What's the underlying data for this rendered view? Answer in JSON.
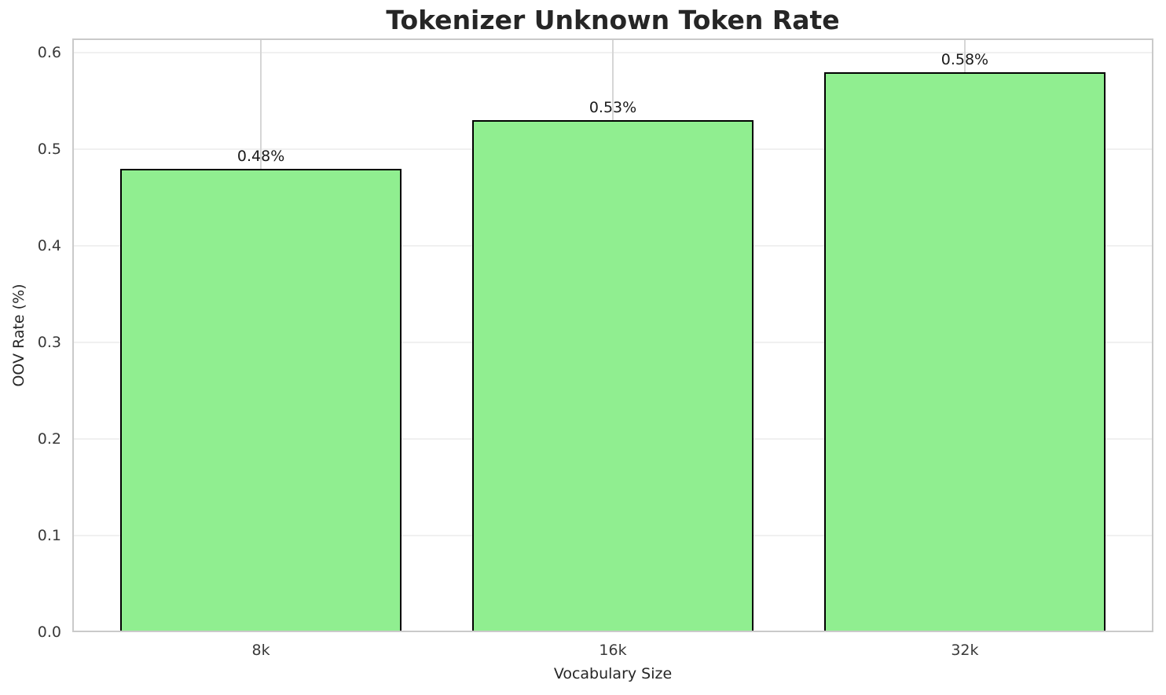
{
  "chart_data": {
    "type": "bar",
    "title": "Tokenizer Unknown Token Rate",
    "xlabel": "Vocabulary Size",
    "ylabel": "OOV Rate (%)",
    "categories": [
      "8k",
      "16k",
      "32k"
    ],
    "values": [
      0.48,
      0.53,
      0.58
    ],
    "bar_labels": [
      "0.48%",
      "0.53%",
      "0.58%"
    ],
    "ylim": [
      0,
      0.615
    ],
    "yticks": [
      0.0,
      0.1,
      0.2,
      0.3,
      0.4,
      0.5,
      0.6
    ],
    "ytick_labels": [
      "0.0",
      "0.1",
      "0.2",
      "0.3",
      "0.4",
      "0.5",
      "0.6"
    ],
    "grid": true,
    "legend": "none",
    "colors": {
      "bar_fill": "#90ee90",
      "bar_edge": "#000000",
      "grid_horizontal": "#f0f0f0",
      "grid_vertical": "#d6d6d6",
      "spine": "#cacaca",
      "title_text": "#262626",
      "tick_text": "#3a3a3a",
      "bar_label_text": "#1a1a1a",
      "background": "#ffffff"
    }
  }
}
